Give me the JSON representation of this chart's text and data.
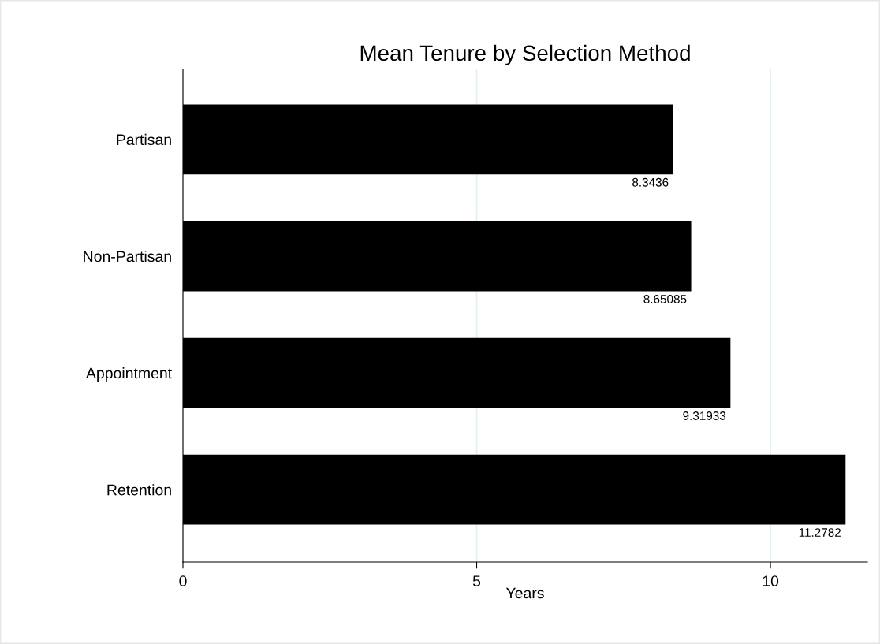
{
  "chart_data": {
    "type": "bar",
    "orientation": "horizontal",
    "title": "Mean Tenure by Selection Method",
    "xlabel": "Years",
    "categories": [
      "Partisan",
      "Non-Partisan",
      "Appointment",
      "Retention"
    ],
    "values": [
      8.3436,
      8.65085,
      9.31933,
      11.2782
    ],
    "color": "#000000",
    "xlim": [
      0,
      11.65
    ],
    "xticks": [
      0,
      5,
      10
    ],
    "grid": "x",
    "data_labels": true
  }
}
